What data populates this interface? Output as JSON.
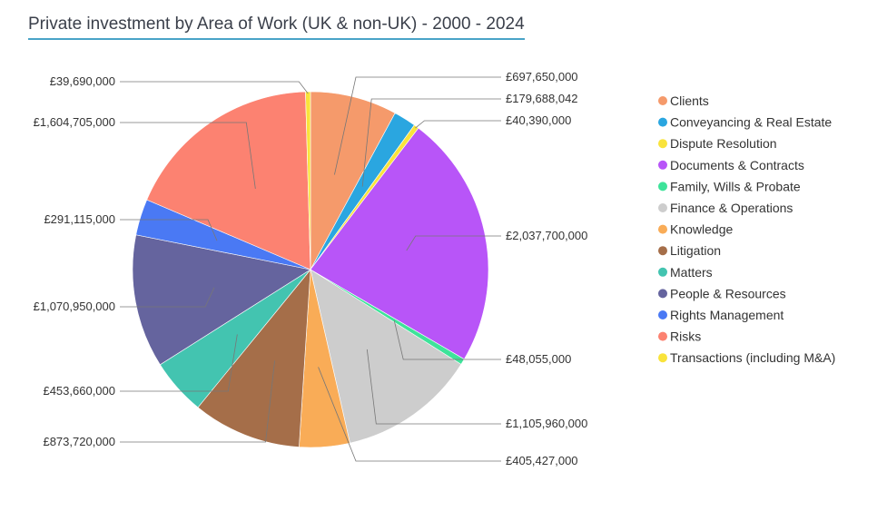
{
  "title": "Private investment by Area of Work (UK & non-UK) - 2000 - 2024",
  "chart_data": {
    "type": "pie",
    "title": "Private investment by Area of Work (UK & non-UK) - 2000 - 2024",
    "legend_position": "right",
    "slices": [
      {
        "name": "Clients",
        "value": 697650000,
        "label": "£697,650,000",
        "color": "#F59A6B"
      },
      {
        "name": "Conveyancing & Real Estate",
        "value": 179688042,
        "label": "£179,688,042",
        "color": "#2AA6E0"
      },
      {
        "name": "Dispute Resolution",
        "value": 40390000,
        "label": "£40,390,000",
        "color": "#F9E33B"
      },
      {
        "name": "Documents & Contracts",
        "value": 2037700000,
        "label": "£2,037,700,000",
        "color": "#B855F8"
      },
      {
        "name": "Family, Wills & Probate",
        "value": 48055000,
        "label": "£48,055,000",
        "color": "#3EE39A"
      },
      {
        "name": "Finance & Operations",
        "value": 1105960000,
        "label": "£1,105,960,000",
        "color": "#CDCDCD"
      },
      {
        "name": "Knowledge",
        "value": 405427000,
        "label": "£405,427,000",
        "color": "#F9AC57"
      },
      {
        "name": "Litigation",
        "value": 873720000,
        "label": "£873,720,000",
        "color": "#A56E49"
      },
      {
        "name": "Matters",
        "value": 453660000,
        "label": "£453,660,000",
        "color": "#43C4B0"
      },
      {
        "name": "People & Resources",
        "value": 1070950000,
        "label": "£1,070,950,000",
        "color": "#65649E"
      },
      {
        "name": "Rights Management",
        "value": 291115000,
        "label": "£291,115,000",
        "color": "#4A79F4"
      },
      {
        "name": "Risks",
        "value": 1604705000,
        "label": "£1,604,705,000",
        "color": "#FC8271"
      },
      {
        "name": "Transactions (including M&A)",
        "value": 39690000,
        "label": "£39,690,000",
        "color": "#F9E33B"
      }
    ]
  }
}
